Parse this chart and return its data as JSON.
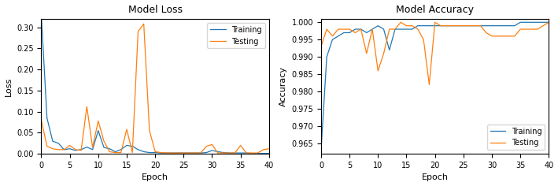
{
  "loss_title": "Model Loss",
  "acc_title": "Model Accuracy",
  "xlabel": "Epoch",
  "loss_ylabel": "Loss",
  "acc_ylabel": "Accuracy",
  "train_color": "#1f77b4",
  "test_color": "#ff7f0e",
  "legend_train": "Training",
  "legend_test": "Testing",
  "epochs": [
    0,
    1,
    2,
    3,
    4,
    5,
    6,
    7,
    8,
    9,
    10,
    11,
    12,
    13,
    14,
    15,
    16,
    17,
    18,
    19,
    20,
    21,
    22,
    23,
    24,
    25,
    26,
    27,
    28,
    29,
    30,
    31,
    32,
    33,
    34,
    35,
    36,
    37,
    38,
    39,
    40
  ],
  "train_loss": [
    0.33,
    0.085,
    0.03,
    0.025,
    0.01,
    0.012,
    0.008,
    0.01,
    0.016,
    0.01,
    0.055,
    0.015,
    0.012,
    0.005,
    0.01,
    0.02,
    0.018,
    0.01,
    0.005,
    0.003,
    0.003,
    0.002,
    0.002,
    0.002,
    0.002,
    0.002,
    0.002,
    0.002,
    0.002,
    0.003,
    0.008,
    0.005,
    0.003,
    0.002,
    0.002,
    0.002,
    0.002,
    0.001,
    0.001,
    0.001,
    0.001
  ],
  "test_loss": [
    0.08,
    0.018,
    0.012,
    0.01,
    0.01,
    0.02,
    0.01,
    0.008,
    0.112,
    0.015,
    0.078,
    0.03,
    0.005,
    0.003,
    0.003,
    0.058,
    0.003,
    0.29,
    0.308,
    0.055,
    0.005,
    0.003,
    0.002,
    0.002,
    0.002,
    0.002,
    0.002,
    0.002,
    0.002,
    0.018,
    0.022,
    0.002,
    0.002,
    0.002,
    0.002,
    0.02,
    0.002,
    0.002,
    0.002,
    0.01,
    0.012
  ],
  "train_acc": [
    0.963,
    0.99,
    0.995,
    0.996,
    0.997,
    0.997,
    0.998,
    0.998,
    0.997,
    0.998,
    0.999,
    0.998,
    0.992,
    0.998,
    0.998,
    0.998,
    0.998,
    0.999,
    0.999,
    0.999,
    0.999,
    0.999,
    0.999,
    0.999,
    0.999,
    0.999,
    0.999,
    0.999,
    0.999,
    0.999,
    0.999,
    0.999,
    0.999,
    0.999,
    0.999,
    1.0,
    1.0,
    1.0,
    1.0,
    1.0,
    1.0
  ],
  "test_acc": [
    0.993,
    0.998,
    0.996,
    0.998,
    0.998,
    0.998,
    0.997,
    0.998,
    0.991,
    0.998,
    0.986,
    0.991,
    0.998,
    0.998,
    1.0,
    0.999,
    0.999,
    0.998,
    0.995,
    0.982,
    1.0,
    0.999,
    0.999,
    0.999,
    0.999,
    0.999,
    0.999,
    0.999,
    0.999,
    0.997,
    0.996,
    0.996,
    0.996,
    0.996,
    0.996,
    0.998,
    0.998,
    0.998,
    0.998,
    0.999,
    1.0
  ],
  "acc_yticks": [
    0.965,
    0.97,
    0.975,
    0.98,
    0.985,
    0.99,
    0.995,
    1.0
  ],
  "acc_ylim": [
    0.962,
    1.001
  ],
  "loss_ylim": [
    0.0,
    0.32
  ],
  "loss_yticks": [
    0.0,
    0.05,
    0.1,
    0.15,
    0.2,
    0.25,
    0.3
  ],
  "figsize": [
    7.09,
    2.36
  ],
  "dpi": 100
}
